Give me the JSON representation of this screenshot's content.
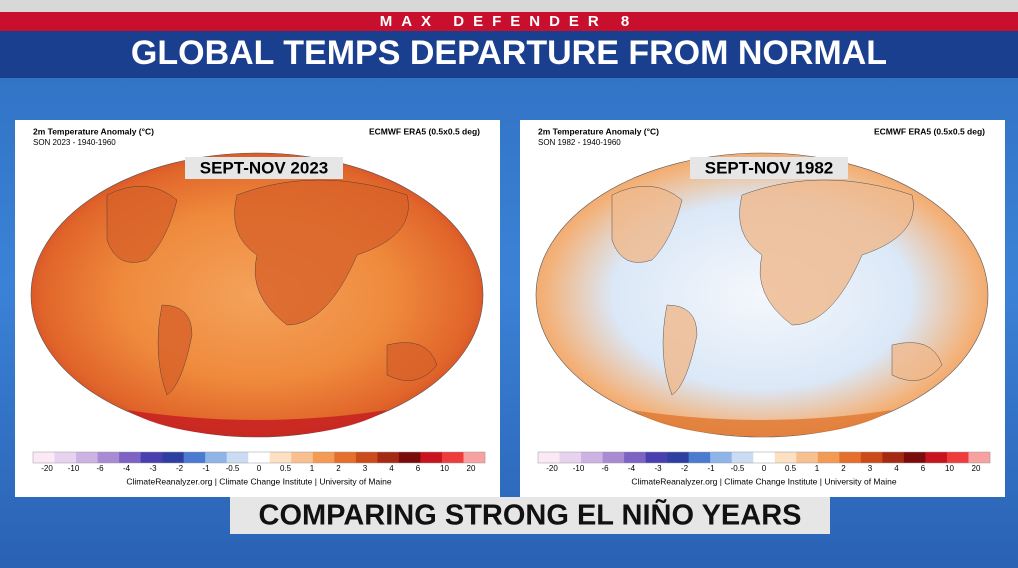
{
  "header": {
    "network": "MAX DEFENDER 8",
    "title": "GLOBAL TEMPS DEPARTURE FROM NORMAL"
  },
  "panels": [
    {
      "variable": "2m Temperature Anomaly (°C)",
      "period": "SON 2023 - 1940-1960",
      "source": "ECMWF ERA5 (0.5x0.5 deg)",
      "label": "SEPT-NOV 2023",
      "colorbar": [
        "-20",
        "-10",
        "-6",
        "-4",
        "-3",
        "-2",
        "-1",
        "-0.5",
        "0",
        "0.5",
        "1",
        "2",
        "3",
        "4",
        "6",
        "10",
        "20"
      ],
      "credit": "ClimateReanalyzer.org | Climate Change Institute | University of Maine"
    },
    {
      "variable": "2m Temperature Anomaly (°C)",
      "period": "SON 1982 - 1940-1960",
      "source": "ECMWF ERA5 (0.5x0.5 deg)",
      "label": "SEPT-NOV 1982",
      "colorbar": [
        "-20",
        "-10",
        "-6",
        "-4",
        "-3",
        "-2",
        "-1",
        "-0.5",
        "0",
        "0.5",
        "1",
        "2",
        "3",
        "4",
        "6",
        "10",
        "20"
      ],
      "credit": "ClimateReanalyzer.org | Climate Change Institute | University of Maine"
    }
  ],
  "caption": "COMPARING STRONG EL NIÑO YEARS"
}
